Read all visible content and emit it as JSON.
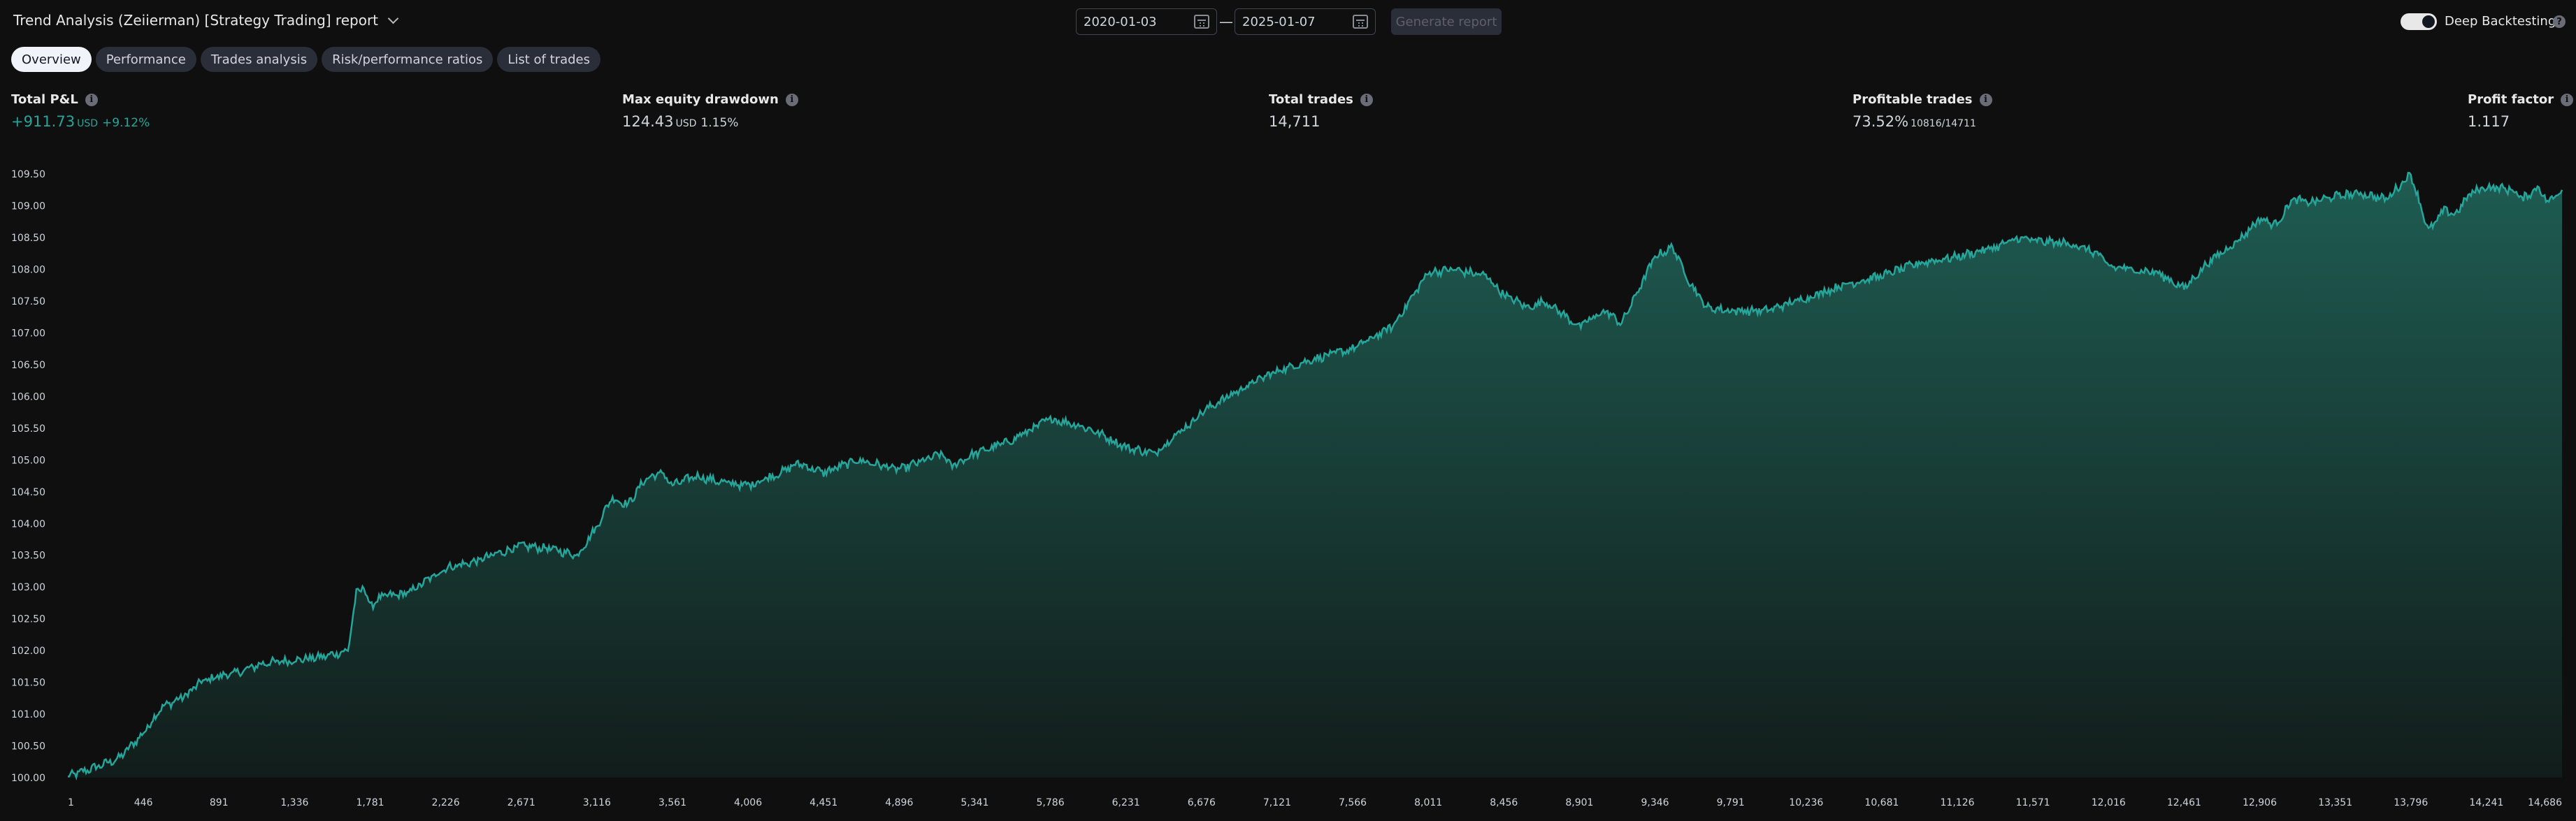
{
  "header": {
    "title": "Trend Analysis (Zeiierman) [Strategy Trading] report",
    "date_from": "2020-01-03",
    "date_to": "2025-01-07",
    "date_separator": "—",
    "generate_label": "Generate report",
    "deep_backtesting_label": "Deep Backtesting",
    "deep_backtesting_enabled": true
  },
  "tabs": [
    {
      "label": "Overview",
      "active": true
    },
    {
      "label": "Performance",
      "active": false
    },
    {
      "label": "Trades analysis",
      "active": false
    },
    {
      "label": "Risk/performance ratios",
      "active": false
    },
    {
      "label": "List of trades",
      "active": false
    }
  ],
  "metrics": {
    "total_pnl": {
      "label": "Total P&L",
      "value": "+911.73",
      "unit": "USD",
      "percent": "+9.12%"
    },
    "max_drawdown": {
      "label": "Max equity drawdown",
      "value": "124.43",
      "unit": "USD",
      "percent": "1.15%"
    },
    "total_trades": {
      "label": "Total trades",
      "value": "14,711"
    },
    "profitable_trades": {
      "label": "Profitable trades",
      "value": "73.52%",
      "detail": "10816/14711"
    },
    "profit_factor": {
      "label": "Profit factor",
      "value": "1.117"
    }
  },
  "colors": {
    "background": "#0f0f0f",
    "line": "#26a69a",
    "area_top": "#1e5c52",
    "area_bottom": "#121d1b",
    "positive": "#26a69a"
  },
  "chart_data": {
    "type": "area",
    "ylim": [
      100.0,
      109.6
    ],
    "xlim": [
      1,
      14686
    ],
    "y_ticks": [
      "100.00",
      "100.50",
      "101.00",
      "101.50",
      "102.00",
      "102.50",
      "103.00",
      "103.50",
      "104.00",
      "104.50",
      "105.00",
      "105.50",
      "106.00",
      "106.50",
      "107.00",
      "107.50",
      "108.00",
      "108.50",
      "109.00",
      "109.50"
    ],
    "x_ticks": [
      "1",
      "446",
      "891",
      "1,336",
      "1,781",
      "2,226",
      "2,671",
      "3,116",
      "3,561",
      "4,006",
      "4,451",
      "4,896",
      "5,341",
      "5,786",
      "6,231",
      "6,676",
      "7,121",
      "7,566",
      "8,011",
      "8,456",
      "8,901",
      "9,346",
      "9,791",
      "10,236",
      "10,681",
      "11,126",
      "11,571",
      "12,016",
      "12,461",
      "12,906",
      "13,351",
      "13,796",
      "14,241",
      "14,686"
    ],
    "series": [
      {
        "x": [
          1,
          150,
          300,
          446,
          550,
          700,
          780,
          891,
          1000,
          1150,
          1336,
          1500,
          1650,
          1700,
          1745,
          1781,
          1850,
          2000,
          2226,
          2400,
          2500,
          2671,
          2850,
          3000,
          3116,
          3200,
          3300,
          3400,
          3500,
          3561,
          3700,
          3850,
          4006,
          4100,
          4200,
          4300,
          4451,
          4650,
          4896,
          5150,
          5200,
          5341,
          5550,
          5786,
          5950,
          6050,
          6231,
          6400,
          6500,
          6600,
          6676,
          6800,
          7000,
          7121,
          7350,
          7566,
          7800,
          7900,
          8011,
          8150,
          8350,
          8456,
          8600,
          8700,
          8901,
          9050,
          9150,
          9346,
          9450,
          9550,
          9650,
          9791,
          10000,
          10236,
          10450,
          10681,
          10900,
          11126,
          11350,
          11500,
          11571,
          11800,
          11950,
          12016,
          12150,
          12300,
          12400,
          12461,
          12600,
          12800,
          12906,
          13000,
          13100,
          13200,
          13351,
          13500,
          13650,
          13796,
          13900,
          14000,
          14050,
          14150,
          14241,
          14400,
          14450,
          14550,
          14600,
          14686
        ],
        "y": [
          100.02,
          100.15,
          100.3,
          100.7,
          101.1,
          101.3,
          101.5,
          101.6,
          101.65,
          101.8,
          101.85,
          101.9,
          102.0,
          102.9,
          103.0,
          102.7,
          102.85,
          102.9,
          103.3,
          103.4,
          103.5,
          103.65,
          103.6,
          103.5,
          103.95,
          104.4,
          104.3,
          104.7,
          104.8,
          104.6,
          104.75,
          104.65,
          104.6,
          104.7,
          104.8,
          104.95,
          104.8,
          105.0,
          104.85,
          105.1,
          104.9,
          105.1,
          105.3,
          105.65,
          105.55,
          105.45,
          105.2,
          105.1,
          105.35,
          105.55,
          105.75,
          105.95,
          106.25,
          106.4,
          106.6,
          106.75,
          107.1,
          107.5,
          107.95,
          108.0,
          107.9,
          107.6,
          107.4,
          107.5,
          107.1,
          107.35,
          107.15,
          108.2,
          108.35,
          107.8,
          107.4,
          107.35,
          107.35,
          107.55,
          107.75,
          107.9,
          108.1,
          108.2,
          108.35,
          108.5,
          108.45,
          108.4,
          108.25,
          108.05,
          108.0,
          107.95,
          107.8,
          107.7,
          108.1,
          108.5,
          108.8,
          108.7,
          109.1,
          109.05,
          109.15,
          109.2,
          109.1,
          109.5,
          108.6,
          108.95,
          108.85,
          109.2,
          109.3,
          109.25,
          109.1,
          109.3,
          109.05,
          109.25
        ]
      }
    ]
  }
}
